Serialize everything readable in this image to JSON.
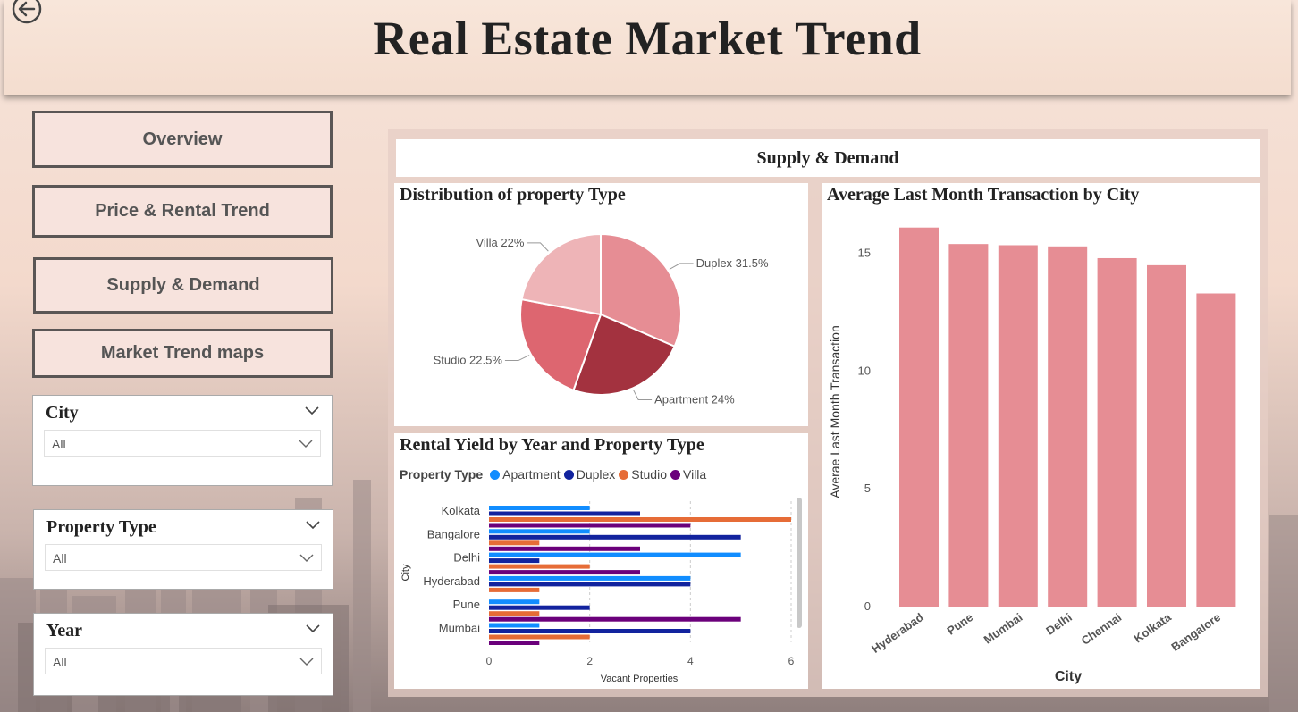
{
  "header": {
    "title": "Real Estate Market Trend"
  },
  "nav": {
    "overview": "Overview",
    "price_rental": "Price & Rental Trend",
    "supply_demand": "Supply & Demand",
    "market_maps": "Market Trend maps"
  },
  "slicers": {
    "city": {
      "title": "City",
      "value": "All"
    },
    "property_type": {
      "title": "Property Type",
      "value": "All"
    },
    "year": {
      "title": "Year",
      "value": "All"
    }
  },
  "section": {
    "title": "Supply & Demand"
  },
  "colors": {
    "accent_pink": "#e68d94",
    "apartment": "#118dff",
    "duplex": "#12239e",
    "studio": "#e66c37",
    "villa": "#6b007b"
  },
  "chart_data": [
    {
      "type": "pie",
      "title": "Distribution of property Type",
      "slices": [
        {
          "label": "Duplex",
          "value": 31.5,
          "display": "Duplex 31.5%",
          "color": "#e68d94"
        },
        {
          "label": "Apartment",
          "value": 24,
          "display": "Apartment 24%",
          "color": "#a3323f"
        },
        {
          "label": "Studio",
          "value": 22.5,
          "display": "Studio 22.5%",
          "color": "#dd6670"
        },
        {
          "label": "Villa",
          "value": 22,
          "display": "Villa 22%",
          "color": "#eeb4b7"
        }
      ]
    },
    {
      "type": "bar",
      "orientation": "horizontal",
      "title": "Rental Yield by Year and Property Type",
      "legend_title": "Property Type",
      "xlabel": "Vacant Properties",
      "ylabel": "City",
      "xlim": [
        0,
        6
      ],
      "x_ticks": [
        "0",
        "2",
        "4",
        "6"
      ],
      "categories": [
        "Kolkata",
        "Bangalore",
        "Delhi",
        "Hyderabad",
        "Pune",
        "Mumbai"
      ],
      "series": [
        {
          "name": "Apartment",
          "color": "#118dff",
          "values": [
            2,
            2,
            5,
            4,
            1,
            1
          ]
        },
        {
          "name": "Duplex",
          "color": "#12239e",
          "values": [
            3,
            5,
            1,
            4,
            2,
            4
          ]
        },
        {
          "name": "Studio",
          "color": "#e66c37",
          "values": [
            6,
            1,
            2,
            1,
            1,
            2
          ]
        },
        {
          "name": "Villa",
          "color": "#6b007b",
          "values": [
            4,
            3,
            3,
            0,
            5,
            1
          ]
        }
      ],
      "legend_position": "top-left"
    },
    {
      "type": "bar",
      "title": "Average Last Month Transaction by City",
      "xlabel": "City",
      "ylabel": "Averae Last Month Transaction",
      "categories": [
        "Hyderabad",
        "Pune",
        "Mumbai",
        "Delhi",
        "Chennai",
        "Kolkata",
        "Bangalore"
      ],
      "values": [
        16.1,
        15.4,
        15.35,
        15.3,
        14.8,
        14.5,
        13.3
      ],
      "ylim": [
        0,
        17
      ],
      "y_ticks": [
        "0",
        "5",
        "10",
        "15"
      ],
      "color": "#e68d94"
    }
  ]
}
